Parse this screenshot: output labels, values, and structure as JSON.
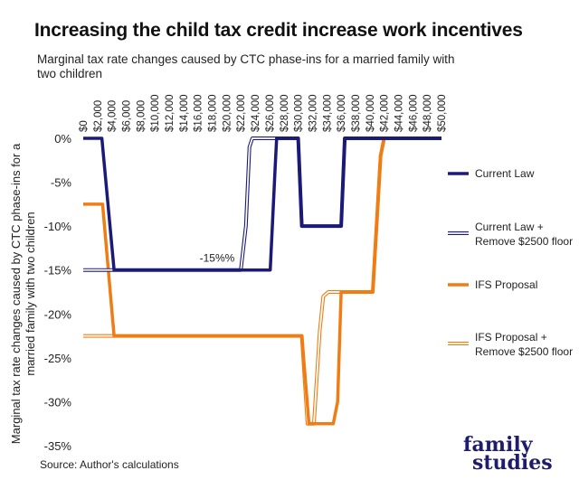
{
  "title": "Increasing the child tax credit increase work incentives",
  "subtitle": "Marginal tax rate changes caused by CTC phase-ins for a married family with two children",
  "source": "Source: Author's calculations",
  "logo": {
    "line1": "family",
    "line2": "studies"
  },
  "chart_data": {
    "type": "line",
    "title": "Marginal tax rate changes caused by CTC phase-ins for a married family with two children",
    "ylabel": "Marginal tax rate changes caused by CTC phase-ins for a married family with two children",
    "xlabel": "",
    "xlim": [
      0,
      50000
    ],
    "ylim": [
      -35,
      0
    ],
    "x_ticks": [
      "$0",
      "$2,000",
      "$4,000",
      "$6,000",
      "$8,000",
      "$10,000",
      "$12,000",
      "$14,000",
      "$16,000",
      "$18,000",
      "$20,000",
      "$22,000",
      "$24,000",
      "$26,000",
      "$28,000",
      "$30,000",
      "$32,000",
      "$34,000",
      "$36,000",
      "$38,000",
      "$40,000",
      "$42,000",
      "$44,000",
      "$46,000",
      "$48,000",
      "$50,000"
    ],
    "x_tick_values": [
      0,
      2000,
      4000,
      6000,
      8000,
      10000,
      12000,
      14000,
      16000,
      18000,
      20000,
      22000,
      24000,
      26000,
      28000,
      30000,
      32000,
      34000,
      36000,
      38000,
      40000,
      42000,
      44000,
      46000,
      48000,
      50000
    ],
    "y_ticks": [
      "0%",
      "-5%",
      "-10%",
      "-15%",
      "-20%",
      "-25%",
      "-30%",
      "-35%"
    ],
    "y_tick_values": [
      0,
      -5,
      -10,
      -15,
      -20,
      -25,
      -30,
      -35
    ],
    "x_axis_position": "top",
    "grid": false,
    "legend_position": "right",
    "annotation": {
      "text": "-15%%",
      "x": 17000,
      "y": -15
    },
    "series": [
      {
        "name": "Current Law",
        "color": "#1c1a78",
        "style": "solid",
        "x": [
          0,
          2500,
          2600,
          4300,
          4500,
          25000,
          25100,
          26000,
          26100,
          26800,
          27000,
          29500,
          30000,
          30500,
          36000,
          36500,
          37000,
          50000
        ],
        "y": [
          0,
          0,
          0,
          -15,
          -15,
          -15,
          -15,
          -15,
          -15,
          -3,
          0,
          0,
          0,
          -10,
          -10,
          0,
          0,
          0
        ]
      },
      {
        "name": "Current Law + Remove $2500 floor",
        "color": "#1c1a78",
        "style": "outline",
        "x": [
          0,
          22000,
          22700,
          23200,
          23600,
          29500,
          30000,
          30500,
          36000,
          36500,
          37000,
          50000
        ],
        "y": [
          -15,
          -15,
          -10,
          -1,
          0,
          0,
          0,
          -10,
          -10,
          0,
          0,
          0
        ],
        "skip_until": 22000
      },
      {
        "name": "IFS Proposal",
        "color": "#f07d14",
        "style": "solid",
        "x": [
          0,
          2500,
          2700,
          4300,
          4500,
          30000,
          30500,
          31500,
          33000,
          34900,
          35500,
          36000,
          36500,
          40000,
          40400,
          41500,
          42000,
          50000
        ],
        "y": [
          -7.5,
          -7.5,
          -7.5,
          -22.5,
          -22.5,
          -22.5,
          -22.5,
          -32.5,
          -32.5,
          -32.5,
          -30,
          -17.5,
          -17.5,
          -17.5,
          -17.5,
          -2,
          0,
          0
        ],
        "outline_x": [
          0,
          4300,
          30000,
          30500,
          31300,
          32200,
          33000,
          33500,
          34200,
          35000,
          40000,
          40400,
          41500,
          42000,
          50000
        ],
        "outline_y": [
          -22.5,
          -22.5,
          -22.5,
          -22.5,
          -32.5,
          -32.5,
          -22,
          -18,
          -17.5,
          -17.5,
          -17.5,
          -17.5,
          -2,
          0,
          0
        ]
      },
      {
        "name": "IFS Proposal + Remove $2500 floor",
        "color": "#f07d14",
        "style": "outline",
        "x": [
          0,
          4300,
          30000,
          30500,
          31300,
          32200,
          33000,
          33500,
          34200,
          35000,
          40000,
          40400,
          41500,
          42000,
          50000
        ],
        "y": [
          -22.5,
          -22.5,
          -22.5,
          -22.5,
          -32.5,
          -32.5,
          -22,
          -18,
          -17.5,
          -17.5,
          -17.5,
          -17.5,
          -2,
          0,
          0
        ]
      }
    ]
  }
}
